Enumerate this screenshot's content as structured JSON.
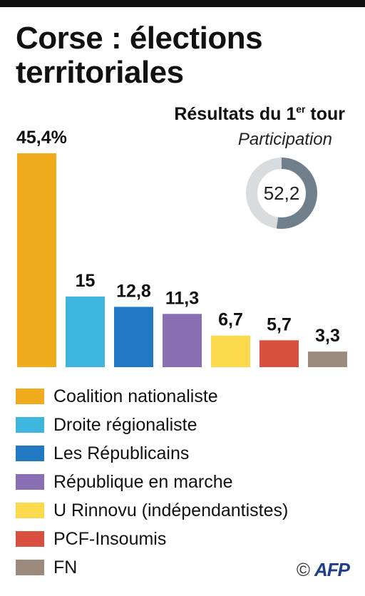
{
  "header": {
    "title": "Corse : élections territoriales",
    "subtitle_main": "Résultats du 1",
    "subtitle_sup": "er",
    "subtitle_end": " tour",
    "participation_label": "Participation"
  },
  "credit": {
    "copyright": "©",
    "logo": "AFP"
  },
  "chart_data": {
    "type": "bar",
    "title": "Corse : élections territoriales",
    "subtitle": "Résultats du 1er tour",
    "unit": "%",
    "categories": [
      "Coalition nationaliste",
      "Droite régionaliste",
      "Les Républicains",
      "République en marche",
      "U Rinnovu (indépendantistes)",
      "PCF-Insoumis",
      "FN"
    ],
    "values": [
      45.4,
      15,
      12.8,
      11.3,
      6.7,
      5.7,
      3.3
    ],
    "value_labels": [
      "45,4%",
      "15",
      "12,8",
      "11,3",
      "6,7",
      "5,7",
      "3,3"
    ],
    "colors": [
      "#f0ac1d",
      "#3db5df",
      "#2179c4",
      "#8a6fb5",
      "#fdd94c",
      "#d94f40",
      "#9c8b7d"
    ],
    "ylim": [
      0,
      45.4
    ],
    "grid": false,
    "legend": "bottom",
    "participation": {
      "value": 52.2,
      "label": "52,2",
      "colors": {
        "filled": "#6f7f8c",
        "rest": "#d9dcdf"
      }
    }
  }
}
